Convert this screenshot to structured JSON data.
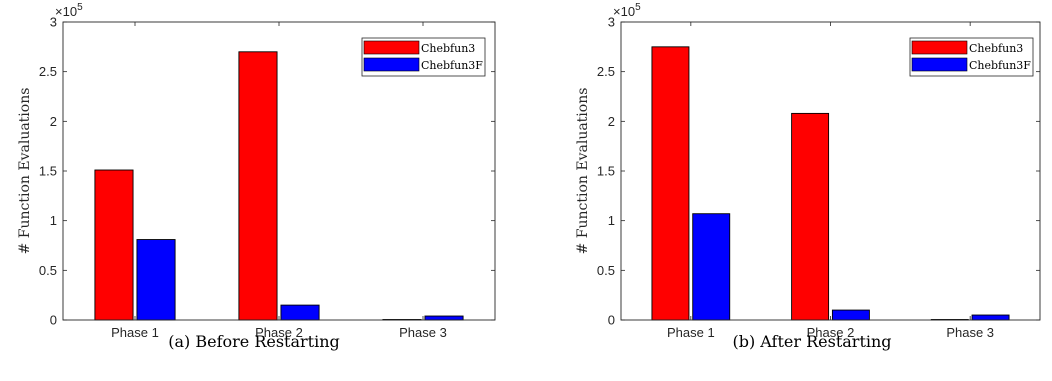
{
  "chart_data": [
    {
      "type": "bar",
      "caption": "(a) Before Restarting",
      "categories": [
        "Phase 1",
        "Phase 2",
        "Phase 3"
      ],
      "series": [
        {
          "name": "Chebfun3",
          "color": "#ff0000",
          "values": [
            151000,
            270000,
            500
          ]
        },
        {
          "name": "Chebfun3F",
          "color": "#0000ff",
          "values": [
            81000,
            15000,
            4000
          ]
        }
      ],
      "ylabel": "# Function Evaluations",
      "ylim": [
        0,
        300000
      ],
      "yticks": [
        0,
        50000,
        100000,
        150000,
        200000,
        250000,
        300000
      ],
      "ytick_labels": [
        "0",
        "0.5",
        "1",
        "1.5",
        "2",
        "2.5",
        "3"
      ],
      "y_multiplier": {
        "base": "×10",
        "exponent": "5"
      },
      "legend_position": "top-right"
    },
    {
      "type": "bar",
      "caption": "(b) After Restarting",
      "categories": [
        "Phase 1",
        "Phase 2",
        "Phase 3"
      ],
      "series": [
        {
          "name": "Chebfun3",
          "color": "#ff0000",
          "values": [
            275000,
            208000,
            500
          ]
        },
        {
          "name": "Chebfun3F",
          "color": "#0000ff",
          "values": [
            107000,
            10000,
            5000
          ]
        }
      ],
      "ylabel": "# Function Evaluations",
      "ylim": [
        0,
        300000
      ],
      "yticks": [
        0,
        50000,
        100000,
        150000,
        200000,
        250000,
        300000
      ],
      "ytick_labels": [
        "0",
        "0.5",
        "1",
        "1.5",
        "2",
        "2.5",
        "3"
      ],
      "y_multiplier": {
        "base": "×10",
        "exponent": "5"
      },
      "legend_position": "top-right"
    }
  ]
}
